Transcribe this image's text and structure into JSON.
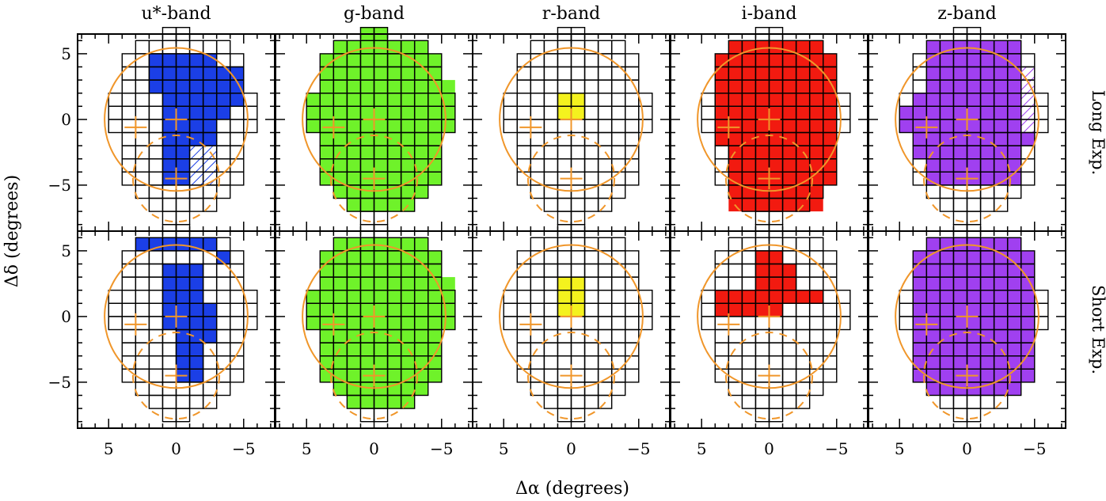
{
  "chart_data": {
    "type": "heatmap",
    "title": "",
    "xlabel": "Δα (degrees)",
    "ylabel": "Δδ (degrees)",
    "xlim": [
      7.3,
      -7.3
    ],
    "ylim": [
      -8.5,
      6.5
    ],
    "x_ticks": [
      5,
      0,
      -5
    ],
    "y_ticks": [
      5,
      0,
      -5
    ],
    "grid_cell_degrees": 1,
    "columns": [
      "u*-band",
      "g-band",
      "r-band",
      "i-band",
      "z-band"
    ],
    "rows": [
      "Long Exp.",
      "Short Exp."
    ],
    "footprint_cells": [
      [
        6,
        -1,
        1
      ],
      [
        5,
        -4,
        3
      ],
      [
        4,
        -5,
        4
      ],
      [
        3,
        -5,
        4
      ],
      [
        2,
        -5,
        4
      ],
      [
        1,
        -6,
        5
      ],
      [
        0,
        -6,
        5
      ],
      [
        -1,
        -6,
        5
      ],
      [
        -2,
        -5,
        4
      ],
      [
        -3,
        -5,
        4
      ],
      [
        -4,
        -5,
        4
      ],
      [
        -5,
        -5,
        4
      ],
      [
        -6,
        -4,
        3
      ],
      [
        -7,
        -3,
        2
      ],
      [
        -8,
        -1,
        1
      ]
    ],
    "overlay": {
      "circles": [
        {
          "center": [
            0,
            0
          ],
          "radius": 5.3,
          "style": "solid"
        },
        {
          "center": [
            0,
            -4.5
          ],
          "radius": 3.2,
          "style": "dashed"
        }
      ],
      "markers": [
        [
          3,
          -0.6
        ],
        [
          0,
          0
        ],
        [
          0,
          -4.5
        ]
      ],
      "color": "#f0962a"
    },
    "panels": [
      {
        "band": "u*-band",
        "exposure": "Long Exp.",
        "color": "#1b3fe6",
        "filled": [
          [
            4,
            -3,
            2
          ],
          [
            3,
            -5,
            2
          ],
          [
            2,
            -5,
            2
          ],
          [
            1,
            -5,
            1
          ],
          [
            0,
            -4,
            1
          ],
          [
            -1,
            -3,
            1
          ],
          [
            -2,
            -3,
            1
          ],
          [
            -3,
            -1,
            1
          ],
          [
            -4,
            -1,
            1
          ],
          [
            -5,
            -1,
            1
          ]
        ],
        "hatched": [
          [
            -2,
            -3,
            -1
          ],
          [
            -3,
            -3,
            -1
          ],
          [
            -4,
            -3,
            -1
          ],
          [
            -5,
            -3,
            -1
          ]
        ]
      },
      {
        "band": "g-band",
        "exposure": "Long Exp.",
        "color": "#6ff22a",
        "filled": [
          [
            6,
            -1,
            1
          ],
          [
            5,
            -4,
            3
          ],
          [
            4,
            -5,
            4
          ],
          [
            3,
            -5,
            4
          ],
          [
            2,
            -6,
            4
          ],
          [
            1,
            -6,
            5
          ],
          [
            0,
            -6,
            5
          ],
          [
            -1,
            -6,
            5
          ],
          [
            -2,
            -5,
            4
          ],
          [
            -3,
            -5,
            4
          ],
          [
            -4,
            -5,
            4
          ],
          [
            -5,
            -5,
            4
          ],
          [
            -6,
            -4,
            3
          ],
          [
            -7,
            -3,
            2
          ]
        ],
        "hatched": []
      },
      {
        "band": "r-band",
        "exposure": "Long Exp.",
        "color": "#f4f21e",
        "filled": [
          [
            1,
            -1,
            1
          ],
          [
            0,
            -1,
            1
          ]
        ],
        "hatched": []
      },
      {
        "band": "i-band",
        "exposure": "Long Exp.",
        "color": "#f21a10",
        "filled": [
          [
            5,
            -4,
            3
          ],
          [
            4,
            -5,
            4
          ],
          [
            3,
            -5,
            4
          ],
          [
            2,
            -5,
            4
          ],
          [
            1,
            -5,
            4
          ],
          [
            0,
            -5,
            4
          ],
          [
            -1,
            -5,
            4
          ],
          [
            -2,
            -5,
            4
          ],
          [
            -3,
            -5,
            3
          ],
          [
            -4,
            -5,
            3
          ],
          [
            -5,
            -5,
            3
          ],
          [
            -6,
            -4,
            3
          ],
          [
            -7,
            -4,
            3
          ]
        ],
        "hatched": []
      },
      {
        "band": "z-band",
        "exposure": "Long Exp.",
        "color": "#a040f0",
        "filled": [
          [
            5,
            -4,
            3
          ],
          [
            4,
            -4,
            3
          ],
          [
            3,
            -4,
            3
          ],
          [
            2,
            -4,
            3
          ],
          [
            1,
            -4,
            4
          ],
          [
            0,
            -4,
            5
          ],
          [
            -1,
            -4,
            5
          ],
          [
            -2,
            -5,
            4
          ],
          [
            -3,
            -4,
            4
          ],
          [
            -4,
            -4,
            3
          ],
          [
            -5,
            -4,
            3
          ]
        ],
        "hatched": [
          [
            3,
            -5,
            -4
          ],
          [
            2,
            -5,
            -4
          ],
          [
            1,
            -5,
            -4
          ],
          [
            0,
            -5,
            -4
          ],
          [
            -1,
            -5,
            -4
          ]
        ]
      },
      {
        "band": "u*-band",
        "exposure": "Short Exp.",
        "color": "#1b3fe6",
        "filled": [
          [
            5,
            -3,
            3
          ],
          [
            4,
            -4,
            -3
          ],
          [
            3,
            -2,
            1
          ],
          [
            2,
            -2,
            1
          ],
          [
            1,
            -2,
            1
          ],
          [
            0,
            -3,
            1
          ],
          [
            -1,
            -3,
            1
          ],
          [
            -2,
            -3,
            0
          ],
          [
            -3,
            -2,
            0
          ],
          [
            -4,
            -2,
            0
          ],
          [
            -5,
            -2,
            0
          ]
        ],
        "hatched": []
      },
      {
        "band": "g-band",
        "exposure": "Short Exp.",
        "color": "#6ff22a",
        "filled": [
          [
            5,
            -4,
            3
          ],
          [
            4,
            -5,
            4
          ],
          [
            3,
            -5,
            4
          ],
          [
            2,
            -6,
            4
          ],
          [
            1,
            -6,
            5
          ],
          [
            0,
            -6,
            5
          ],
          [
            -1,
            -6,
            5
          ],
          [
            -2,
            -5,
            4
          ],
          [
            -3,
            -5,
            4
          ],
          [
            -4,
            -5,
            4
          ],
          [
            -5,
            -5,
            4
          ],
          [
            -6,
            -4,
            3
          ],
          [
            -7,
            -3,
            2
          ]
        ],
        "hatched": []
      },
      {
        "band": "r-band",
        "exposure": "Short Exp.",
        "color": "#f4f21e",
        "filled": [
          [
            2,
            -1,
            1
          ],
          [
            1,
            -1,
            1
          ],
          [
            0,
            -1,
            1
          ]
        ],
        "hatched": []
      },
      {
        "band": "i-band",
        "exposure": "Short Exp.",
        "color": "#f21a10",
        "filled": [
          [
            4,
            -1,
            1
          ],
          [
            3,
            -2,
            1
          ],
          [
            2,
            -2,
            1
          ],
          [
            1,
            -4,
            4
          ],
          [
            0,
            -1,
            4
          ]
        ],
        "hatched": []
      },
      {
        "band": "z-band",
        "exposure": "Short Exp.",
        "color": "#a040f0",
        "filled": [
          [
            5,
            -4,
            3
          ],
          [
            4,
            -5,
            4
          ],
          [
            3,
            -5,
            4
          ],
          [
            2,
            -5,
            4
          ],
          [
            1,
            -5,
            4
          ],
          [
            0,
            -5,
            4
          ],
          [
            -1,
            -5,
            4
          ],
          [
            -2,
            -5,
            4
          ],
          [
            -3,
            -5,
            4
          ],
          [
            -4,
            -5,
            4
          ],
          [
            -5,
            -5,
            4
          ],
          [
            -6,
            -4,
            3
          ]
        ],
        "hatched": []
      }
    ]
  }
}
